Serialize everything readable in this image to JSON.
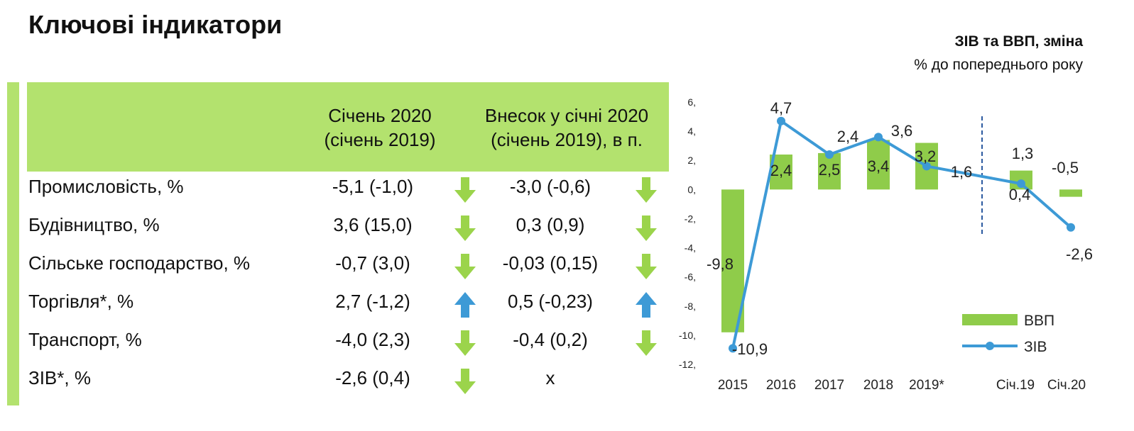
{
  "page": {
    "title": "Ключові індикатори"
  },
  "table": {
    "headers": [
      {
        "line1": "Січень 2020",
        "line2": "(січень 2019)"
      },
      {
        "line1": "Внесок у січні 2020",
        "line2": "(січень 2019), в п."
      }
    ],
    "rows": [
      {
        "label": "Промисловість, %",
        "value": "-5,1 (-1,0)",
        "trend1": "down",
        "contribution": "-3,0 (-0,6)",
        "trend2": "down"
      },
      {
        "label": "Будівництво, %",
        "value": "3,6 (15,0)",
        "trend1": "down",
        "contribution": "0,3 (0,9)",
        "trend2": "down"
      },
      {
        "label": "Сільське господарство, %",
        "value": "-0,7 (3,0)",
        "trend1": "down",
        "contribution": "-0,03 (0,15)",
        "trend2": "down"
      },
      {
        "label": "Торгівля*, %",
        "value": "2,7 (-1,2)",
        "trend1": "up",
        "contribution": "0,5 (-0,23)",
        "trend2": "up"
      },
      {
        "label": "Транспорт, %",
        "value": "-4,0 (2,3)",
        "trend1": "down",
        "contribution": "-0,4 (0,2)",
        "trend2": "down"
      },
      {
        "label": "ЗІВ*, %",
        "value": "-2,6 (0,4)",
        "trend1": "down",
        "contribution": "x",
        "trend2": "none"
      }
    ],
    "colors": {
      "header_bg": "#b3e26e",
      "arrow_down": "#9bd44b",
      "arrow_up": "#3d9ad6"
    }
  },
  "chart_data": {
    "type": "bar",
    "title": "ЗІВ та ВВП, зміна",
    "subtitle": "% до попереднього року",
    "yticks": [
      "6,",
      "4,",
      "2,",
      "0,",
      "-2,",
      "-4,",
      "-6,",
      "-8,",
      "-10,",
      "-12,"
    ],
    "ylim": [
      -12,
      6
    ],
    "categories": [
      "2015",
      "2016",
      "2017",
      "2018",
      "2019*",
      "Січ.19",
      "Січ.20"
    ],
    "series": [
      {
        "name": "ВВП",
        "kind": "bar",
        "color": "#8fcc4a",
        "values": [
          -9.8,
          2.4,
          2.5,
          3.4,
          3.2,
          1.3,
          -0.5
        ],
        "labels": [
          "-9,8",
          "2,4",
          "2,5",
          "3,4",
          "3,2",
          "1,3",
          "-0,5"
        ]
      },
      {
        "name": "ЗІВ",
        "kind": "line",
        "color": "#3d9ad6",
        "values": [
          -10.9,
          4.7,
          2.4,
          3.6,
          1.6,
          0.4,
          -2.6
        ],
        "labels": [
          "-10,9",
          "4,7",
          "2,4",
          "3,6",
          "1,6",
          "0,4",
          "-2,6"
        ]
      }
    ],
    "legend_position": "bottom-right",
    "grid": false
  }
}
